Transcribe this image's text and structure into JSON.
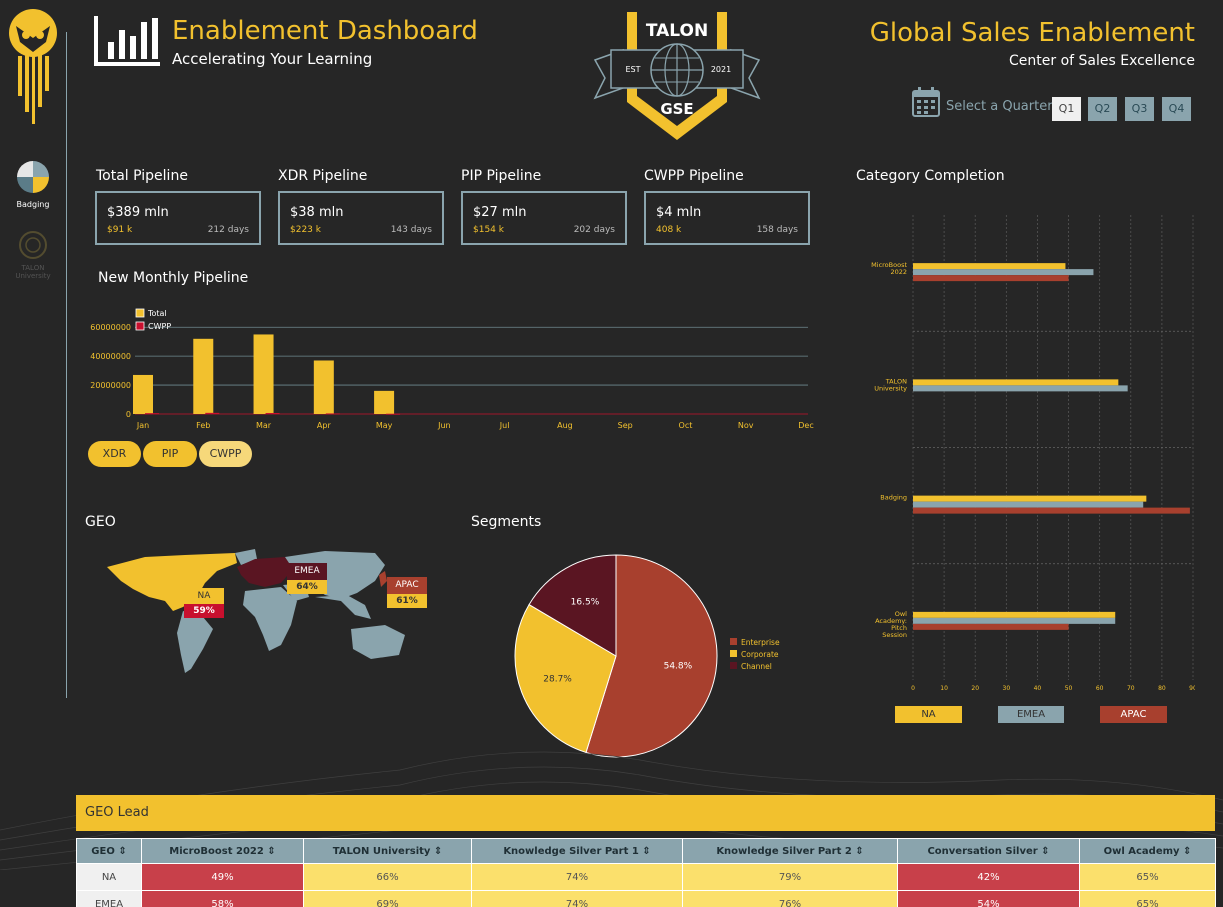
{
  "header": {
    "title": "Enablement Dashboard",
    "subtitle": "Accelerating Your Learning",
    "right_title": "Global Sales Enablement",
    "right_subtitle": "Center of Sales Excellence",
    "quarter_label": "Select a Quarter:",
    "quarters": [
      "Q1",
      "Q2",
      "Q3",
      "Q4"
    ],
    "selected_quarter": "Q1"
  },
  "logo": {
    "top": "TALON",
    "est": "EST",
    "year": "2021",
    "bottom": "GSE"
  },
  "sidebar": {
    "items": [
      {
        "label": "Badging",
        "icon": "pinwheel-icon"
      },
      {
        "label": "TALON University",
        "icon": "talon-seal-icon"
      }
    ]
  },
  "kpis": [
    {
      "title": "Total Pipeline",
      "value": "$389 mln",
      "sub": "$91 k",
      "days": "212 days"
    },
    {
      "title": "XDR Pipeline",
      "value": "$38 mln",
      "sub": "$223 k",
      "days": "143 days"
    },
    {
      "title": "PIP Pipeline",
      "value": "$27 mln",
      "sub": "$154 k",
      "days": "202 days"
    },
    {
      "title": "CWPP Pipeline",
      "value": "$4 mln",
      "sub": "408 k",
      "days": "158 days"
    }
  ],
  "sections": {
    "monthly": "New Monthly Pipeline",
    "category": "Category Completion",
    "geo": "GEO",
    "segments": "Segments",
    "geo_lead": "GEO Lead"
  },
  "filters": [
    "XDR",
    "PIP",
    "CWPP"
  ],
  "map_labels": [
    {
      "region": "NA",
      "value": "59%"
    },
    {
      "region": "EMEA",
      "value": "64%"
    },
    {
      "region": "APAC",
      "value": "61%"
    }
  ],
  "colors": {
    "accent": "#f2c12e",
    "emea": "#8aa4ad",
    "apac": "#a8402e",
    "channel": "#5a1522",
    "red_cell": "#c8404a",
    "yellow_cell": "#fbe06c"
  },
  "chart_data": [
    {
      "type": "bar",
      "categories": [
        "Jan",
        "Feb",
        "Mar",
        "Apr",
        "May",
        "Jun",
        "Jul",
        "Aug",
        "Sep",
        "Oct",
        "Nov",
        "Dec"
      ],
      "series": [
        {
          "name": "Total",
          "values": [
            27000000,
            52000000,
            55000000,
            37000000,
            16000000,
            0,
            0,
            0,
            0,
            0,
            0,
            0
          ]
        },
        {
          "name": "CWPP",
          "values": [
            600000,
            800000,
            700000,
            400000,
            200000,
            0,
            0,
            0,
            0,
            0,
            0,
            0
          ]
        }
      ],
      "yticks": [
        "0",
        "20000000",
        "40000000",
        "60000000"
      ],
      "ylim": [
        0,
        65000000
      ],
      "legend": "top-left",
      "grid": true
    },
    {
      "type": "bar",
      "orientation": "horizontal",
      "categories": [
        "MicroBoost 2022",
        "TALON University",
        "Badging",
        "Owl Academy: Pitch Session"
      ],
      "series": [
        {
          "name": "NA",
          "values": [
            49,
            66,
            75,
            65
          ]
        },
        {
          "name": "EMEA",
          "values": [
            58,
            69,
            74,
            65
          ]
        },
        {
          "name": "APAC",
          "values": [
            50,
            0,
            89,
            50
          ]
        }
      ],
      "xticks": [
        "0",
        "10",
        "20",
        "30",
        "40",
        "50",
        "60",
        "70",
        "80",
        "90"
      ],
      "xlim": [
        0,
        90
      ],
      "legend": "bottom",
      "grid": true
    },
    {
      "type": "pie",
      "slices": [
        {
          "name": "Enterprise",
          "value": 54.8,
          "label": "54.8%"
        },
        {
          "name": "Corporate",
          "value": 28.7,
          "label": "28.7%"
        },
        {
          "name": "Channel",
          "value": 16.5,
          "label": "16.5%"
        }
      ],
      "legend": "right"
    }
  ],
  "table": {
    "columns": [
      "GEO ⇕",
      "MicroBoost 2022 ⇕",
      "TALON University ⇕",
      "Knowledge Silver Part 1 ⇕",
      "Knowledge Silver Part 2 ⇕",
      "Conversation Silver ⇕",
      "Owl Academy ⇕"
    ],
    "rows": [
      {
        "geo": "NA",
        "cells": [
          "49%",
          "66%",
          "74%",
          "79%",
          "42%",
          "65%"
        ],
        "status": [
          "red",
          "yellow",
          "yellow",
          "yellow",
          "red",
          "yellow"
        ]
      },
      {
        "geo": "EMEA",
        "cells": [
          "58%",
          "69%",
          "74%",
          "76%",
          "54%",
          "65%"
        ],
        "status": [
          "red",
          "yellow",
          "yellow",
          "yellow",
          "red",
          "yellow"
        ]
      }
    ]
  }
}
